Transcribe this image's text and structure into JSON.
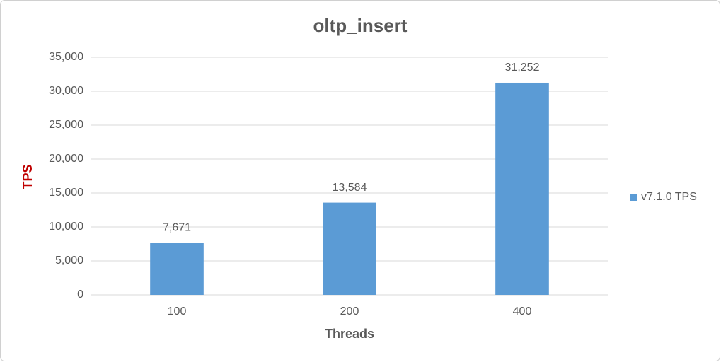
{
  "chart_data": {
    "type": "bar",
    "title": "oltp_insert",
    "x_label": "Threads",
    "y_label": "TPS",
    "categories": [
      "100",
      "200",
      "400"
    ],
    "series": [
      {
        "name": "v7.1.0 TPS",
        "color": "#5b9bd5",
        "values": [
          7671,
          13584,
          31252
        ],
        "value_labels": [
          "7,671",
          "13,584",
          "31,252"
        ]
      }
    ],
    "ylim": [
      0,
      35000
    ],
    "yticks": [
      0,
      {
        "value": 5000,
        "label": "5,000"
      },
      {
        "value": 10000,
        "label": "10,000"
      },
      {
        "value": 15000,
        "label": "15,000"
      },
      {
        "value": 20000,
        "label": "20,000"
      },
      {
        "value": 25000,
        "label": "25,000"
      },
      {
        "value": 30000,
        "label": "30,000"
      },
      {
        "value": 35000,
        "label": "35,000"
      }
    ],
    "grid": true,
    "legend": "right"
  }
}
